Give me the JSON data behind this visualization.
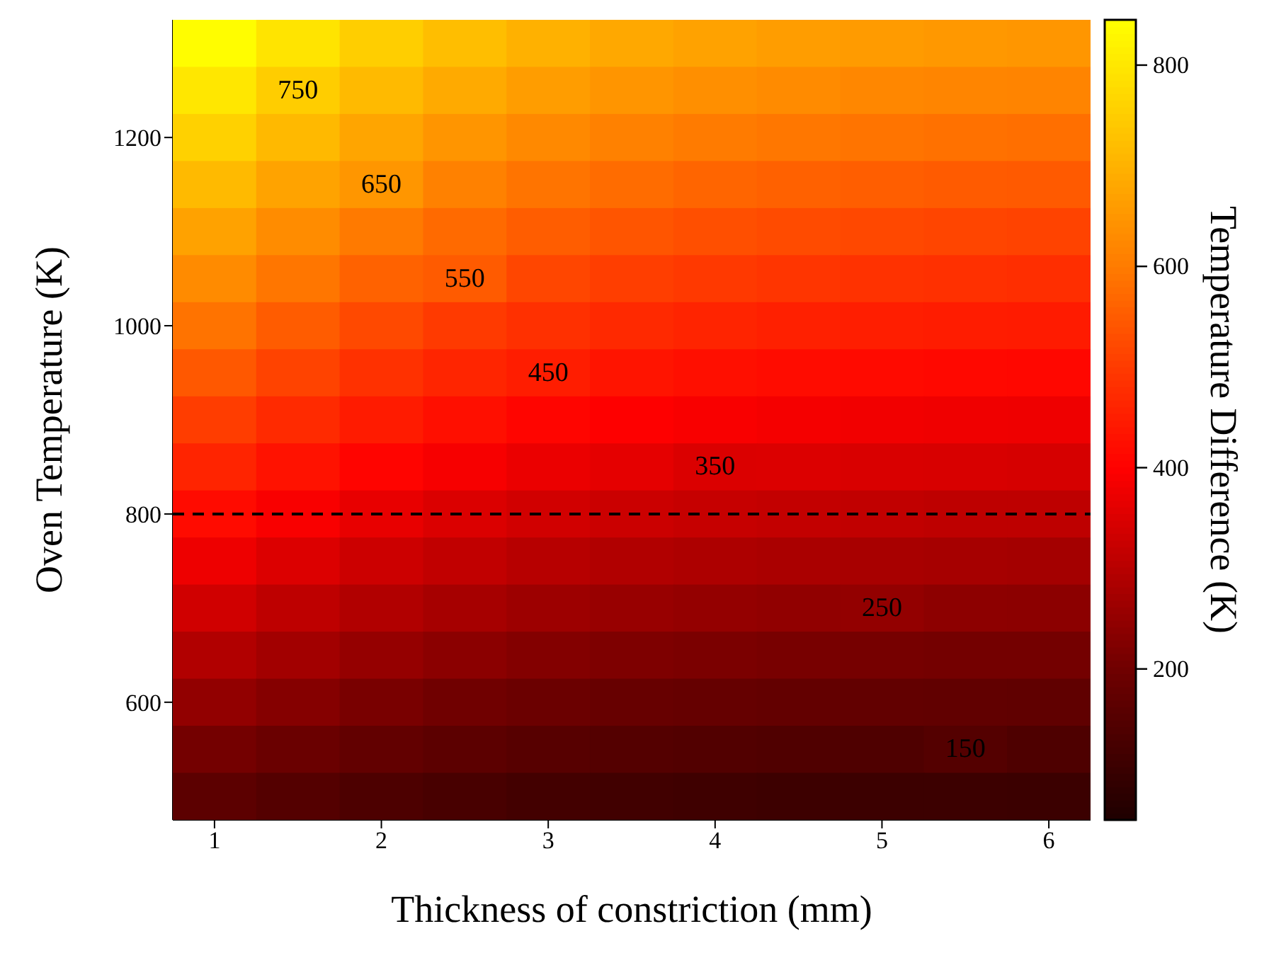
{
  "chart_data": {
    "type": "heatmap",
    "xlabel": "Thickness of constriction (mm)",
    "ylabel": "Oven Temperature (K)",
    "clabel": "Temperature Difference (K)",
    "categories": [
      "1",
      null,
      "2",
      null,
      "3",
      null,
      "4",
      null,
      "5",
      null,
      "6"
    ],
    "y_categories": [
      null,
      null,
      "1200",
      null,
      null,
      null,
      "1000",
      null,
      null,
      null,
      "800",
      null,
      null,
      null,
      "600",
      null,
      null
    ],
    "cells": [
      [
        841,
        794,
        753,
        723,
        698,
        683,
        671,
        663,
        658,
        653,
        650
      ],
      [
        799,
        750,
        715,
        686,
        662,
        647,
        636,
        629,
        623,
        619,
        616
      ],
      [
        757,
        713,
        676,
        648,
        625,
        611,
        601,
        594,
        589,
        584,
        582
      ],
      [
        714,
        673,
        650,
        611,
        589,
        576,
        566,
        559,
        554,
        550,
        548
      ],
      [
        672,
        632,
        599,
        574,
        553,
        540,
        531,
        525,
        520,
        516,
        513
      ],
      [
        630,
        592,
        561,
        550,
        517,
        505,
        496,
        490,
        485,
        482,
        479
      ],
      [
        588,
        552,
        522,
        499,
        481,
        469,
        461,
        455,
        451,
        447,
        445
      ],
      [
        545,
        512,
        483,
        462,
        450,
        434,
        426,
        420,
        416,
        413,
        411
      ],
      [
        503,
        471,
        445,
        425,
        408,
        398,
        391,
        386,
        382,
        379,
        377
      ],
      [
        461,
        431,
        406,
        388,
        372,
        363,
        350,
        351,
        347,
        345,
        343
      ],
      [
        418,
        391,
        368,
        350,
        336,
        327,
        321,
        316,
        313,
        310,
        309
      ],
      [
        376,
        351,
        329,
        313,
        300,
        292,
        286,
        282,
        279,
        276,
        274
      ],
      [
        334,
        310,
        291,
        276,
        264,
        256,
        251,
        247,
        250,
        242,
        240
      ],
      [
        291,
        270,
        252,
        239,
        227,
        221,
        216,
        212,
        210,
        207,
        206
      ],
      [
        249,
        230,
        214,
        201,
        191,
        185,
        180,
        177,
        175,
        173,
        172
      ],
      [
        207,
        190,
        175,
        164,
        155,
        150,
        145,
        143,
        141,
        150,
        138
      ],
      [
        165,
        149,
        137,
        127,
        119,
        114,
        110,
        108,
        106,
        105,
        104
      ]
    ],
    "cell_labels": [
      [
        null,
        null,
        null,
        null,
        null,
        null,
        null,
        null,
        null,
        null,
        null
      ],
      [
        null,
        "750",
        null,
        null,
        null,
        null,
        null,
        null,
        null,
        null,
        null
      ],
      [
        null,
        null,
        null,
        null,
        null,
        null,
        null,
        null,
        null,
        null,
        null
      ],
      [
        null,
        null,
        "650",
        null,
        null,
        null,
        null,
        null,
        null,
        null,
        null
      ],
      [
        null,
        null,
        null,
        null,
        null,
        null,
        null,
        null,
        null,
        null,
        null
      ],
      [
        null,
        null,
        null,
        "550",
        null,
        null,
        null,
        null,
        null,
        null,
        null
      ],
      [
        null,
        null,
        null,
        null,
        null,
        null,
        null,
        null,
        null,
        null,
        null
      ],
      [
        null,
        null,
        null,
        null,
        "450",
        null,
        null,
        null,
        null,
        null,
        null
      ],
      [
        null,
        null,
        null,
        null,
        null,
        null,
        null,
        null,
        null,
        null,
        null
      ],
      [
        null,
        null,
        null,
        null,
        null,
        null,
        "350",
        null,
        null,
        null,
        null
      ],
      [
        null,
        null,
        null,
        null,
        null,
        null,
        null,
        null,
        null,
        null,
        null
      ],
      [
        null,
        null,
        null,
        null,
        null,
        null,
        null,
        null,
        null,
        null,
        null
      ],
      [
        null,
        null,
        null,
        null,
        null,
        null,
        null,
        null,
        "250",
        null,
        null
      ],
      [
        null,
        null,
        null,
        null,
        null,
        null,
        null,
        null,
        null,
        null,
        null
      ],
      [
        null,
        null,
        null,
        null,
        null,
        null,
        null,
        null,
        null,
        null,
        null
      ],
      [
        null,
        null,
        null,
        null,
        null,
        null,
        null,
        null,
        null,
        "150",
        null
      ],
      [
        null,
        null,
        null,
        null,
        null,
        null,
        null,
        null,
        null,
        null,
        null
      ]
    ],
    "clim": [
      50,
      845
    ],
    "cticks": [
      200,
      400,
      600,
      800
    ],
    "ref_lines": [
      {
        "axis": "y",
        "value": "800",
        "color": "#000000",
        "line_style": "dashed"
      }
    ]
  }
}
